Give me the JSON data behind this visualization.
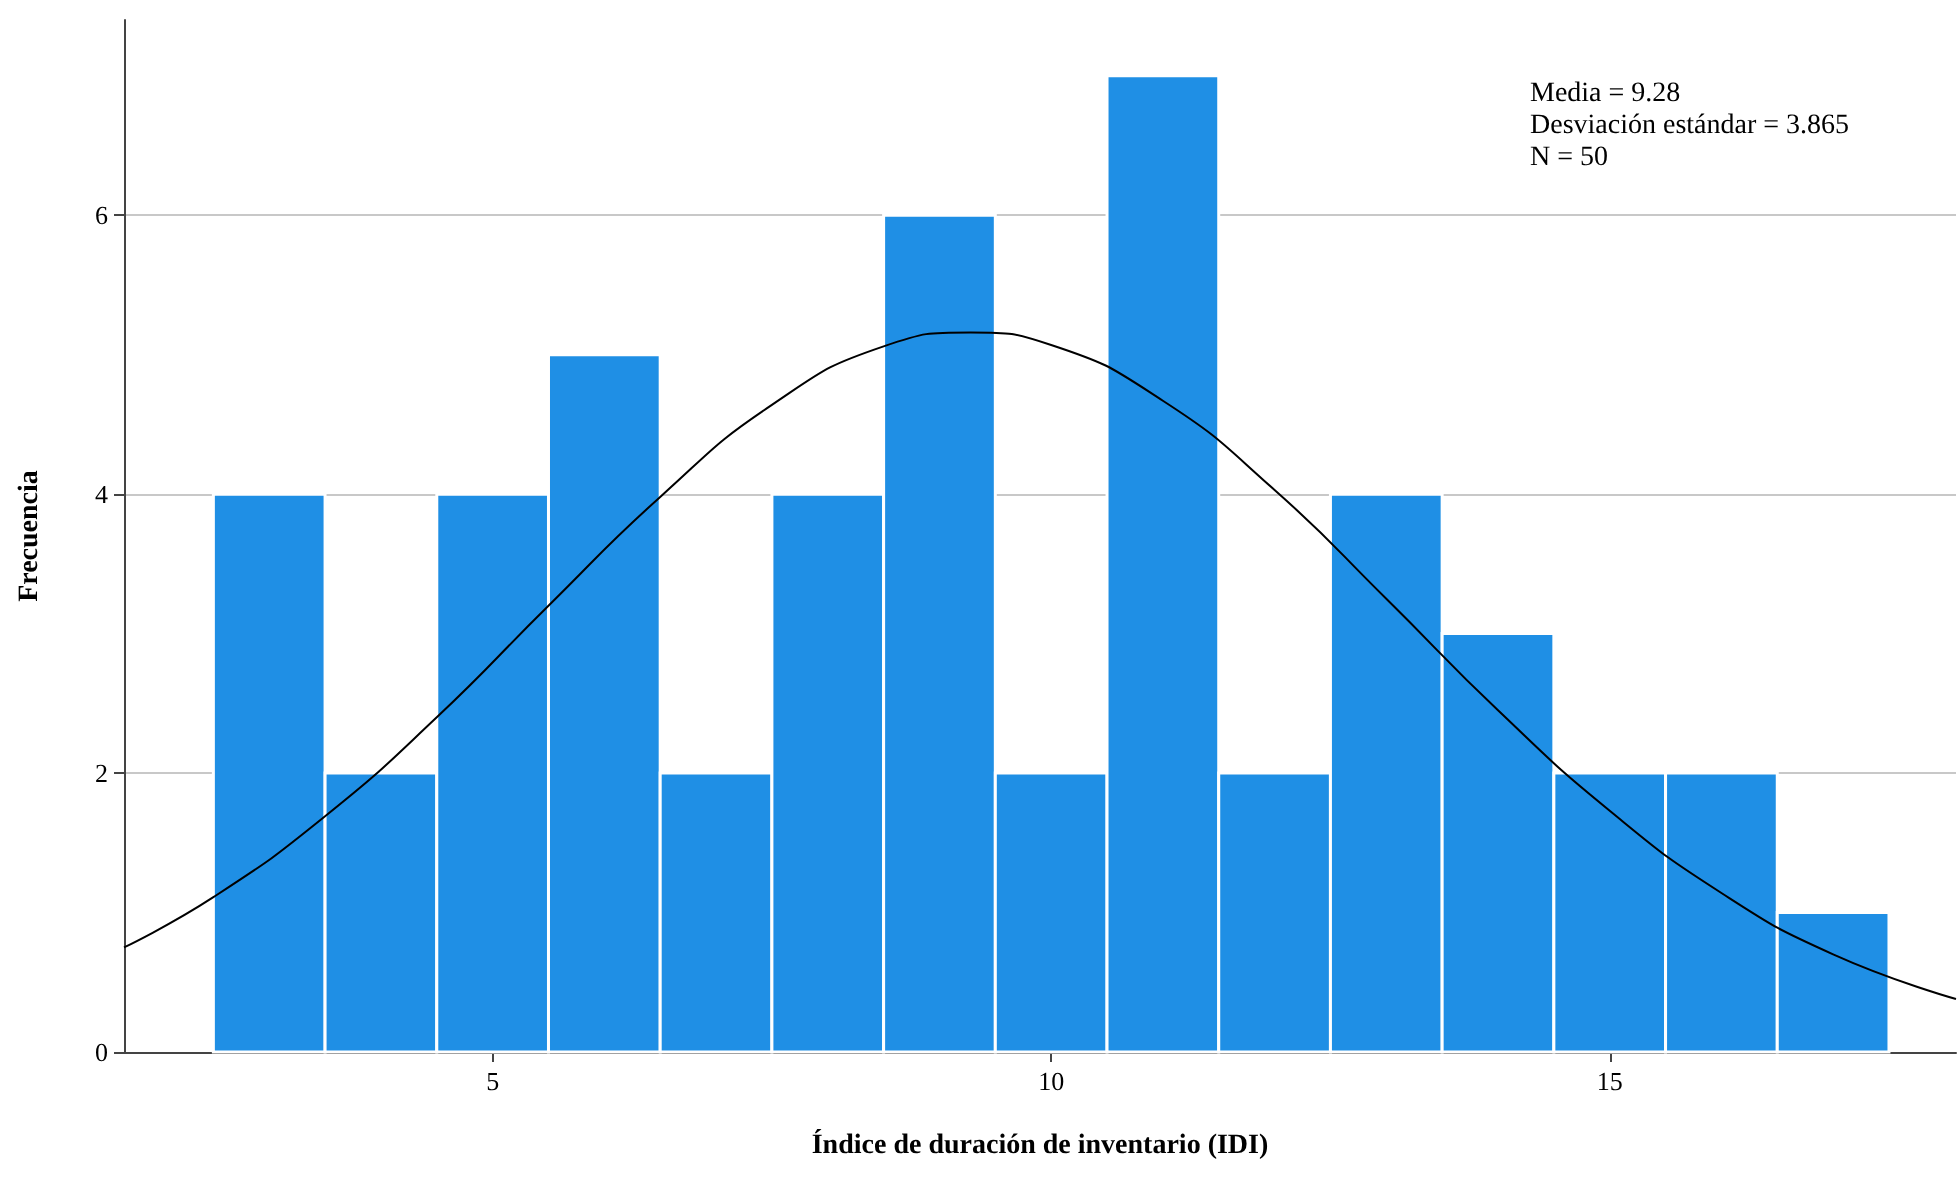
{
  "chart_data": {
    "type": "histogram",
    "xlabel": "Índice de duración de inventario (IDI)",
    "ylabel": "Frecuencia",
    "bins": [
      2.5,
      3.5,
      4.5,
      5.5,
      6.5,
      7.5,
      8.5,
      9.5,
      10.5,
      11.5,
      12.5,
      13.5,
      14.5,
      15.5,
      16.5,
      17.5
    ],
    "series": [
      {
        "color": "#1f8fe5",
        "values": [
          4,
          2,
          4,
          5,
          2,
          4,
          6,
          2,
          7,
          2,
          4,
          3,
          2,
          2,
          1
        ]
      },
      {
        "type": "line",
        "color": "#000000",
        "x": [
          1.7,
          2.5,
          3.5,
          4.5,
          5.5,
          6.5,
          7.5,
          8.5,
          9.28,
          10,
          11,
          12,
          13,
          14,
          15,
          16,
          17,
          18.1
        ],
        "values": [
          0.75,
          1.11,
          1.69,
          2.4,
          3.2,
          3.98,
          4.64,
          5.06,
          5.16,
          5.07,
          4.67,
          4.03,
          3.25,
          2.45,
          1.73,
          1.14,
          0.7,
          0.38
        ]
      }
    ],
    "annotations": [
      "Media = 9.28",
      "Desviación estándar = 3.865",
      "N = 50"
    ],
    "xlim": [
      1.7,
      18.1
    ],
    "ylim": [
      0,
      7.4
    ],
    "xticks": [
      5,
      10,
      15
    ],
    "yticks": [
      0,
      2,
      4,
      6
    ],
    "grid": "y",
    "marker": "none",
    "line_style": "solid"
  }
}
